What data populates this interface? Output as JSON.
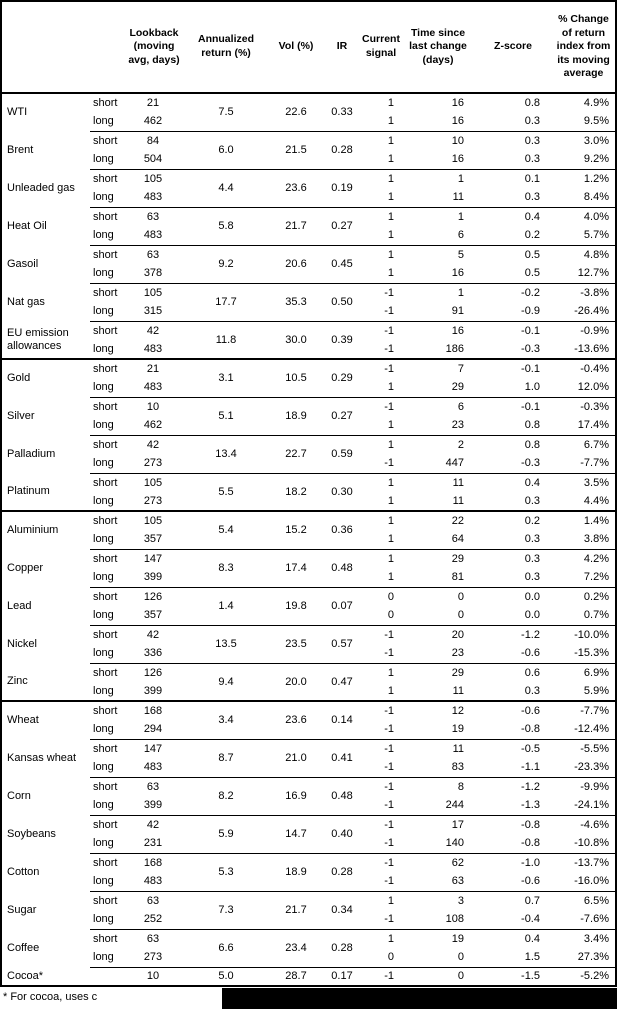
{
  "colors": {
    "border": "#000000",
    "background": "#ffffff",
    "text": "#000000",
    "redaction": "#000000"
  },
  "footnote": {
    "text": "* For cocoa, uses c"
  },
  "table": {
    "columns": {
      "lookback": "Lookback (moving avg, days)",
      "annualized_return": "Annualized return (%)",
      "vol": "Vol (%)",
      "ir": "IR",
      "current_signal": "Current signal",
      "time_since": "Time since last change (days)",
      "z_score": "Z-score",
      "pct_change": "% Change of return index from its moving average"
    },
    "sections": [
      {
        "commodities": [
          {
            "name": "WTI",
            "annualized_return": "7.5",
            "vol": "22.6",
            "ir": "0.33",
            "rows": [
              {
                "pos": "short",
                "lookback": "21",
                "signal": "1",
                "time_since": "16",
                "z_score": "0.8",
                "pct_change": "4.9%"
              },
              {
                "pos": "long",
                "lookback": "462",
                "signal": "1",
                "time_since": "16",
                "z_score": "0.3",
                "pct_change": "9.5%"
              }
            ]
          },
          {
            "name": "Brent",
            "annualized_return": "6.0",
            "vol": "21.5",
            "ir": "0.28",
            "rows": [
              {
                "pos": "short",
                "lookback": "84",
                "signal": "1",
                "time_since": "10",
                "z_score": "0.3",
                "pct_change": "3.0%"
              },
              {
                "pos": "long",
                "lookback": "504",
                "signal": "1",
                "time_since": "16",
                "z_score": "0.3",
                "pct_change": "9.2%"
              }
            ]
          },
          {
            "name": "Unleaded gas",
            "annualized_return": "4.4",
            "vol": "23.6",
            "ir": "0.19",
            "rows": [
              {
                "pos": "short",
                "lookback": "105",
                "signal": "1",
                "time_since": "1",
                "z_score": "0.1",
                "pct_change": "1.2%"
              },
              {
                "pos": "long",
                "lookback": "483",
                "signal": "1",
                "time_since": "11",
                "z_score": "0.3",
                "pct_change": "8.4%"
              }
            ]
          },
          {
            "name": "Heat Oil",
            "annualized_return": "5.8",
            "vol": "21.7",
            "ir": "0.27",
            "rows": [
              {
                "pos": "short",
                "lookback": "63",
                "signal": "1",
                "time_since": "1",
                "z_score": "0.4",
                "pct_change": "4.0%"
              },
              {
                "pos": "long",
                "lookback": "483",
                "signal": "1",
                "time_since": "6",
                "z_score": "0.2",
                "pct_change": "5.7%"
              }
            ]
          },
          {
            "name": "Gasoil",
            "annualized_return": "9.2",
            "vol": "20.6",
            "ir": "0.45",
            "rows": [
              {
                "pos": "short",
                "lookback": "63",
                "signal": "1",
                "time_since": "5",
                "z_score": "0.5",
                "pct_change": "4.8%"
              },
              {
                "pos": "long",
                "lookback": "378",
                "signal": "1",
                "time_since": "16",
                "z_score": "0.5",
                "pct_change": "12.7%"
              }
            ]
          },
          {
            "name": "Nat gas",
            "annualized_return": "17.7",
            "vol": "35.3",
            "ir": "0.50",
            "rows": [
              {
                "pos": "short",
                "lookback": "105",
                "signal": "-1",
                "time_since": "1",
                "z_score": "-0.2",
                "pct_change": "-3.8%"
              },
              {
                "pos": "long",
                "lookback": "315",
                "signal": "-1",
                "time_since": "91",
                "z_score": "-0.9",
                "pct_change": "-26.4%"
              }
            ]
          },
          {
            "name": "EU emission allowances",
            "annualized_return": "11.8",
            "vol": "30.0",
            "ir": "0.39",
            "rows": [
              {
                "pos": "short",
                "lookback": "42",
                "signal": "-1",
                "time_since": "16",
                "z_score": "-0.1",
                "pct_change": "-0.9%"
              },
              {
                "pos": "long",
                "lookback": "483",
                "signal": "-1",
                "time_since": "186",
                "z_score": "-0.3",
                "pct_change": "-13.6%"
              }
            ]
          }
        ]
      },
      {
        "commodities": [
          {
            "name": "Gold",
            "annualized_return": "3.1",
            "vol": "10.5",
            "ir": "0.29",
            "rows": [
              {
                "pos": "short",
                "lookback": "21",
                "signal": "-1",
                "time_since": "7",
                "z_score": "-0.1",
                "pct_change": "-0.4%"
              },
              {
                "pos": "long",
                "lookback": "483",
                "signal": "1",
                "time_since": "29",
                "z_score": "1.0",
                "pct_change": "12.0%"
              }
            ]
          },
          {
            "name": "Silver",
            "annualized_return": "5.1",
            "vol": "18.9",
            "ir": "0.27",
            "rows": [
              {
                "pos": "short",
                "lookback": "10",
                "signal": "-1",
                "time_since": "6",
                "z_score": "-0.1",
                "pct_change": "-0.3%"
              },
              {
                "pos": "long",
                "lookback": "462",
                "signal": "1",
                "time_since": "23",
                "z_score": "0.8",
                "pct_change": "17.4%"
              }
            ]
          },
          {
            "name": "Palladium",
            "annualized_return": "13.4",
            "vol": "22.7",
            "ir": "0.59",
            "rows": [
              {
                "pos": "short",
                "lookback": "42",
                "signal": "1",
                "time_since": "2",
                "z_score": "0.8",
                "pct_change": "6.7%"
              },
              {
                "pos": "long",
                "lookback": "273",
                "signal": "-1",
                "time_since": "447",
                "z_score": "-0.3",
                "pct_change": "-7.7%"
              }
            ]
          },
          {
            "name": "Platinum",
            "annualized_return": "5.5",
            "vol": "18.2",
            "ir": "0.30",
            "rows": [
              {
                "pos": "short",
                "lookback": "105",
                "signal": "1",
                "time_since": "11",
                "z_score": "0.4",
                "pct_change": "3.5%"
              },
              {
                "pos": "long",
                "lookback": "273",
                "signal": "1",
                "time_since": "11",
                "z_score": "0.3",
                "pct_change": "4.4%"
              }
            ]
          }
        ]
      },
      {
        "commodities": [
          {
            "name": "Aluminium",
            "annualized_return": "5.4",
            "vol": "15.2",
            "ir": "0.36",
            "rows": [
              {
                "pos": "short",
                "lookback": "105",
                "signal": "1",
                "time_since": "22",
                "z_score": "0.2",
                "pct_change": "1.4%"
              },
              {
                "pos": "long",
                "lookback": "357",
                "signal": "1",
                "time_since": "64",
                "z_score": "0.3",
                "pct_change": "3.8%"
              }
            ]
          },
          {
            "name": "Copper",
            "annualized_return": "8.3",
            "vol": "17.4",
            "ir": "0.48",
            "rows": [
              {
                "pos": "short",
                "lookback": "147",
                "signal": "1",
                "time_since": "29",
                "z_score": "0.3",
                "pct_change": "4.2%"
              },
              {
                "pos": "long",
                "lookback": "399",
                "signal": "1",
                "time_since": "81",
                "z_score": "0.3",
                "pct_change": "7.2%"
              }
            ]
          },
          {
            "name": "Lead",
            "annualized_return": "1.4",
            "vol": "19.8",
            "ir": "0.07",
            "rows": [
              {
                "pos": "short",
                "lookback": "126",
                "signal": "0",
                "time_since": "0",
                "z_score": "0.0",
                "pct_change": "0.2%"
              },
              {
                "pos": "long",
                "lookback": "357",
                "signal": "0",
                "time_since": "0",
                "z_score": "0.0",
                "pct_change": "0.7%"
              }
            ]
          },
          {
            "name": "Nickel",
            "annualized_return": "13.5",
            "vol": "23.5",
            "ir": "0.57",
            "rows": [
              {
                "pos": "short",
                "lookback": "42",
                "signal": "-1",
                "time_since": "20",
                "z_score": "-1.2",
                "pct_change": "-10.0%"
              },
              {
                "pos": "long",
                "lookback": "336",
                "signal": "-1",
                "time_since": "23",
                "z_score": "-0.6",
                "pct_change": "-15.3%"
              }
            ]
          },
          {
            "name": "Zinc",
            "annualized_return": "9.4",
            "vol": "20.0",
            "ir": "0.47",
            "rows": [
              {
                "pos": "short",
                "lookback": "126",
                "signal": "1",
                "time_since": "29",
                "z_score": "0.6",
                "pct_change": "6.9%"
              },
              {
                "pos": "long",
                "lookback": "399",
                "signal": "1",
                "time_since": "11",
                "z_score": "0.3",
                "pct_change": "5.9%"
              }
            ]
          }
        ]
      },
      {
        "commodities": [
          {
            "name": "Wheat",
            "annualized_return": "3.4",
            "vol": "23.6",
            "ir": "0.14",
            "rows": [
              {
                "pos": "short",
                "lookback": "168",
                "signal": "-1",
                "time_since": "12",
                "z_score": "-0.6",
                "pct_change": "-7.7%"
              },
              {
                "pos": "long",
                "lookback": "294",
                "signal": "-1",
                "time_since": "19",
                "z_score": "-0.8",
                "pct_change": "-12.4%"
              }
            ]
          },
          {
            "name": "Kansas wheat",
            "annualized_return": "8.7",
            "vol": "21.0",
            "ir": "0.41",
            "rows": [
              {
                "pos": "short",
                "lookback": "147",
                "signal": "-1",
                "time_since": "11",
                "z_score": "-0.5",
                "pct_change": "-5.5%"
              },
              {
                "pos": "long",
                "lookback": "483",
                "signal": "-1",
                "time_since": "83",
                "z_score": "-1.1",
                "pct_change": "-23.3%"
              }
            ]
          },
          {
            "name": "Corn",
            "annualized_return": "8.2",
            "vol": "16.9",
            "ir": "0.48",
            "rows": [
              {
                "pos": "short",
                "lookback": "63",
                "signal": "-1",
                "time_since": "8",
                "z_score": "-1.2",
                "pct_change": "-9.9%"
              },
              {
                "pos": "long",
                "lookback": "399",
                "signal": "-1",
                "time_since": "244",
                "z_score": "-1.3",
                "pct_change": "-24.1%"
              }
            ]
          },
          {
            "name": "Soybeans",
            "annualized_return": "5.9",
            "vol": "14.7",
            "ir": "0.40",
            "rows": [
              {
                "pos": "short",
                "lookback": "42",
                "signal": "-1",
                "time_since": "17",
                "z_score": "-0.8",
                "pct_change": "-4.6%"
              },
              {
                "pos": "long",
                "lookback": "231",
                "signal": "-1",
                "time_since": "140",
                "z_score": "-0.8",
                "pct_change": "-10.8%"
              }
            ]
          },
          {
            "name": "Cotton",
            "annualized_return": "5.3",
            "vol": "18.9",
            "ir": "0.28",
            "rows": [
              {
                "pos": "short",
                "lookback": "168",
                "signal": "-1",
                "time_since": "62",
                "z_score": "-1.0",
                "pct_change": "-13.7%"
              },
              {
                "pos": "long",
                "lookback": "483",
                "signal": "-1",
                "time_since": "63",
                "z_score": "-0.6",
                "pct_change": "-16.0%"
              }
            ]
          },
          {
            "name": "Sugar",
            "annualized_return": "7.3",
            "vol": "21.7",
            "ir": "0.34",
            "rows": [
              {
                "pos": "short",
                "lookback": "63",
                "signal": "1",
                "time_since": "3",
                "z_score": "0.7",
                "pct_change": "6.5%"
              },
              {
                "pos": "long",
                "lookback": "252",
                "signal": "-1",
                "time_since": "108",
                "z_score": "-0.4",
                "pct_change": "-7.6%"
              }
            ]
          },
          {
            "name": "Coffee",
            "annualized_return": "6.6",
            "vol": "23.4",
            "ir": "0.28",
            "rows": [
              {
                "pos": "short",
                "lookback": "63",
                "signal": "1",
                "time_since": "19",
                "z_score": "0.4",
                "pct_change": "3.4%"
              },
              {
                "pos": "long",
                "lookback": "273",
                "signal": "0",
                "time_since": "0",
                "z_score": "1.5",
                "pct_change": "27.3%"
              }
            ]
          },
          {
            "name": "Cocoa*",
            "annualized_return": "5.0",
            "vol": "28.7",
            "ir": "0.17",
            "rows": [
              {
                "pos": "",
                "lookback": "10",
                "signal": "-1",
                "time_since": "0",
                "z_score": "-1.5",
                "pct_change": "-5.2%"
              }
            ]
          }
        ]
      }
    ]
  }
}
